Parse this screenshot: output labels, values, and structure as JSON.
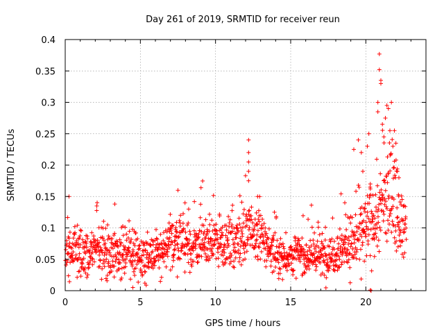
{
  "chart_data": {
    "type": "scatter",
    "title": "Day 261 of 2019, SRMTID for receiver reun",
    "xlabel": "GPS time / hours",
    "ylabel": "SRMTID / TECUs",
    "xlim": [
      0,
      24
    ],
    "ylim": [
      0,
      0.4
    ],
    "xticks": [
      0,
      5,
      10,
      15,
      20
    ],
    "xtick_labels": [
      "0",
      "5",
      "10",
      "15",
      "20"
    ],
    "yticks": [
      0,
      0.05,
      0.1,
      0.15,
      0.2,
      0.25,
      0.3,
      0.35,
      0.4
    ],
    "ytick_labels": [
      "0",
      "0.05",
      "0.1",
      "0.15",
      "0.2",
      "0.25",
      "0.3",
      "0.35",
      "0.4"
    ],
    "grid": true,
    "marker": "+",
    "color": "#ff0000",
    "x_data_range": [
      0,
      22.7
    ],
    "envelope": {
      "hours": [
        0,
        0.5,
        1,
        1.5,
        2,
        2.5,
        3,
        3.5,
        4,
        4.5,
        5,
        5.5,
        6,
        6.5,
        7,
        7.5,
        8,
        8.5,
        9,
        9.5,
        10,
        10.5,
        11,
        11.5,
        12,
        12.5,
        13,
        13.5,
        14,
        14.5,
        15,
        15.5,
        16,
        16.5,
        17,
        17.5,
        18,
        18.5,
        19,
        19.5,
        20,
        20.5,
        21,
        21.5,
        22,
        22.5
      ],
      "median": [
        0.065,
        0.06,
        0.055,
        0.062,
        0.065,
        0.068,
        0.06,
        0.062,
        0.06,
        0.058,
        0.055,
        0.056,
        0.058,
        0.062,
        0.075,
        0.085,
        0.072,
        0.07,
        0.075,
        0.078,
        0.08,
        0.078,
        0.075,
        0.082,
        0.09,
        0.092,
        0.085,
        0.07,
        0.06,
        0.055,
        0.055,
        0.058,
        0.055,
        0.058,
        0.055,
        0.052,
        0.065,
        0.07,
        0.075,
        0.085,
        0.095,
        0.11,
        0.13,
        0.15,
        0.145,
        0.1
      ],
      "spread": [
        0.025,
        0.03,
        0.025,
        0.025,
        0.028,
        0.03,
        0.025,
        0.028,
        0.025,
        0.025,
        0.022,
        0.022,
        0.025,
        0.025,
        0.03,
        0.035,
        0.028,
        0.025,
        0.025,
        0.028,
        0.028,
        0.028,
        0.025,
        0.03,
        0.035,
        0.032,
        0.03,
        0.025,
        0.022,
        0.02,
        0.02,
        0.022,
        0.02,
        0.022,
        0.022,
        0.022,
        0.025,
        0.028,
        0.03,
        0.035,
        0.04,
        0.045,
        0.055,
        0.055,
        0.05,
        0.03
      ]
    },
    "spikes": [
      {
        "x": 0.25,
        "y": 0.15
      },
      {
        "x": 2.1,
        "y": 0.135
      },
      {
        "x": 3.3,
        "y": 0.138
      },
      {
        "x": 7.5,
        "y": 0.16
      },
      {
        "x": 12.2,
        "y": 0.24
      },
      {
        "x": 12.2,
        "y": 0.22
      },
      {
        "x": 12.2,
        "y": 0.205
      },
      {
        "x": 12.2,
        "y": 0.19
      },
      {
        "x": 12.2,
        "y": 0.175
      },
      {
        "x": 12.8,
        "y": 0.15
      },
      {
        "x": 18.6,
        "y": 0.14
      },
      {
        "x": 19.2,
        "y": 0.225
      },
      {
        "x": 19.5,
        "y": 0.24
      },
      {
        "x": 19.7,
        "y": 0.22
      },
      {
        "x": 19.8,
        "y": 0.19
      },
      {
        "x": 20.1,
        "y": 0.23
      },
      {
        "x": 20.2,
        "y": 0.25
      },
      {
        "x": 20.3,
        "y": 0.17
      },
      {
        "x": 20.9,
        "y": 0.377
      },
      {
        "x": 20.9,
        "y": 0.352
      },
      {
        "x": 21.0,
        "y": 0.335
      },
      {
        "x": 21.0,
        "y": 0.33
      },
      {
        "x": 20.8,
        "y": 0.3
      },
      {
        "x": 20.8,
        "y": 0.285
      },
      {
        "x": 21.1,
        "y": 0.265
      },
      {
        "x": 21.2,
        "y": 0.245
      },
      {
        "x": 21.3,
        "y": 0.275
      },
      {
        "x": 21.4,
        "y": 0.295
      },
      {
        "x": 21.5,
        "y": 0.29
      },
      {
        "x": 21.6,
        "y": 0.255
      },
      {
        "x": 21.7,
        "y": 0.3
      },
      {
        "x": 21.8,
        "y": 0.23
      },
      {
        "x": 21.9,
        "y": 0.255
      },
      {
        "x": 22.0,
        "y": 0.235
      },
      {
        "x": 22.1,
        "y": 0.19
      },
      {
        "x": 22.2,
        "y": 0.18
      },
      {
        "x": 20.3,
        "y": 0.001
      },
      {
        "x": 20.35,
        "y": 0.0
      },
      {
        "x": 4.5,
        "y": 0.005
      },
      {
        "x": 5.3,
        "y": 0.012
      }
    ]
  }
}
